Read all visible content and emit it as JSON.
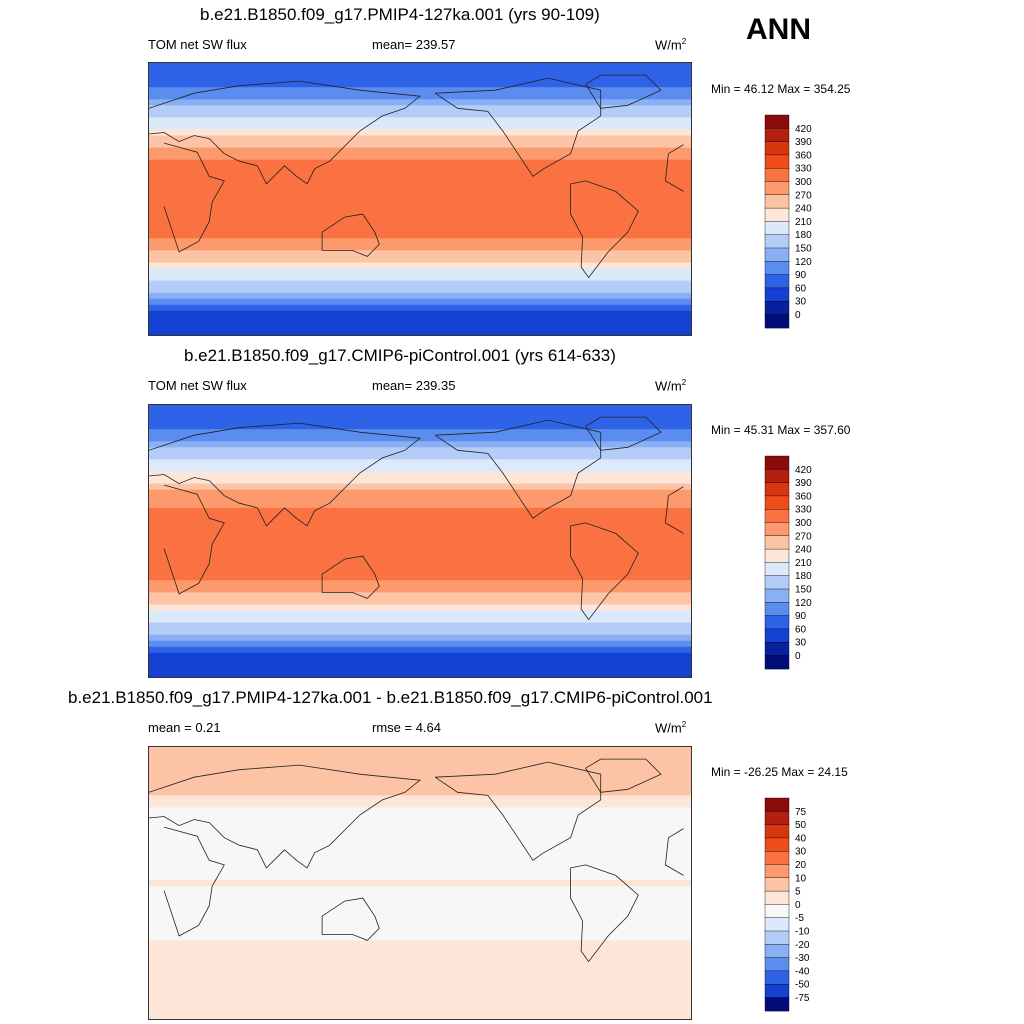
{
  "season": "ANN",
  "panels": [
    {
      "title": "b.e21.B1850.f09_g17.PMIP4-127ka.001 (yrs 90-109)",
      "left_label": "TOM net SW flux",
      "mid_label": "mean= 239.57",
      "units": "W/m",
      "units_sup": "2",
      "minmax": "Min =  46.12 Max = 354.25"
    },
    {
      "title": "b.e21.B1850.f09_g17.CMIP6-piControl.001 (yrs 614-633)",
      "left_label": "TOM net SW flux",
      "mid_label": "mean= 239.35",
      "units": "W/m",
      "units_sup": "2",
      "minmax": "Min =  45.31 Max = 357.60"
    },
    {
      "title": "b.e21.B1850.f09_g17.PMIP4-127ka.001 - b.e21.B1850.f09_g17.CMIP6-piControl.001",
      "left_label": "mean =   0.21",
      "mid_label": "rmse =   4.64",
      "units": "W/m",
      "units_sup": "2",
      "minmax": "Min = -26.25 Max =  24.15"
    }
  ],
  "chart_data": [
    {
      "type": "heatmap",
      "title": "b.e21.B1850.f09_g17.PMIP4-127ka.001 (yrs 90-109)",
      "variable": "TOM net SW flux",
      "units": "W/m2",
      "mean": 239.57,
      "min": 46.12,
      "max": 354.25,
      "colorbar_levels": [
        "420",
        "390",
        "360",
        "330",
        "300",
        "270",
        "240",
        "210",
        "180",
        "150",
        "120",
        "90",
        "60",
        "30",
        "0"
      ],
      "colorbar_colors": [
        "#8b0a0a",
        "#b3200f",
        "#d9360f",
        "#f04c1a",
        "#fa7241",
        "#fc9a6e",
        "#fcc4a4",
        "#fde6d8",
        "#dce9fb",
        "#b3cdf8",
        "#8aaff5",
        "#5b8cf0",
        "#2e63e8",
        "#1440d4",
        "#08209e",
        "#020b7a"
      ],
      "approx_zonal_profile": {
        "lat": [
          90,
          75,
          60,
          45,
          30,
          15,
          0,
          -15,
          -30,
          -45,
          -60,
          -75,
          -90
        ],
        "value": [
          60,
          90,
          150,
          220,
          290,
          320,
          300,
          320,
          290,
          220,
          150,
          60,
          30
        ]
      }
    },
    {
      "type": "heatmap",
      "title": "b.e21.B1850.f09_g17.CMIP6-piControl.001 (yrs 614-633)",
      "variable": "TOM net SW flux",
      "units": "W/m2",
      "mean": 239.35,
      "min": 45.31,
      "max": 357.6,
      "colorbar_levels": [
        "420",
        "390",
        "360",
        "330",
        "300",
        "270",
        "240",
        "210",
        "180",
        "150",
        "120",
        "90",
        "60",
        "30",
        "0"
      ],
      "colorbar_colors": [
        "#8b0a0a",
        "#b3200f",
        "#d9360f",
        "#f04c1a",
        "#fa7241",
        "#fc9a6e",
        "#fcc4a4",
        "#fde6d8",
        "#dce9fb",
        "#b3cdf8",
        "#8aaff5",
        "#5b8cf0",
        "#2e63e8",
        "#1440d4",
        "#08209e",
        "#020b7a"
      ],
      "approx_zonal_profile": {
        "lat": [
          90,
          75,
          60,
          45,
          30,
          15,
          0,
          -15,
          -30,
          -45,
          -60,
          -75,
          -90
        ],
        "value": [
          60,
          90,
          150,
          215,
          285,
          320,
          300,
          320,
          290,
          220,
          150,
          60,
          30
        ]
      }
    },
    {
      "type": "heatmap",
      "title": "b.e21.B1850.f09_g17.PMIP4-127ka.001 - b.e21.B1850.f09_g17.CMIP6-piControl.001",
      "units": "W/m2",
      "mean": 0.21,
      "rmse": 4.64,
      "min": -26.25,
      "max": 24.15,
      "colorbar_levels": [
        "75",
        "50",
        "40",
        "30",
        "20",
        "10",
        "5",
        "0",
        "-5",
        "-10",
        "-20",
        "-30",
        "-40",
        "-50",
        "-75"
      ],
      "colorbar_colors": [
        "#8b0a0a",
        "#b3200f",
        "#d9360f",
        "#f04c1a",
        "#fa7241",
        "#fc9a6e",
        "#fcc4a4",
        "#fde6d8",
        "#f7f7f7",
        "#dce9fb",
        "#b3cdf8",
        "#8aaff5",
        "#5b8cf0",
        "#2e63e8",
        "#1440d4",
        "#020b7a"
      ],
      "approx_zonal_profile": {
        "lat": [
          90,
          75,
          60,
          45,
          30,
          15,
          0,
          -15,
          -30,
          -45,
          -60,
          -75,
          -90
        ],
        "value": [
          8,
          6,
          5,
          -2,
          -4,
          -3,
          0,
          -3,
          -2,
          2,
          3,
          4,
          3
        ]
      }
    }
  ]
}
